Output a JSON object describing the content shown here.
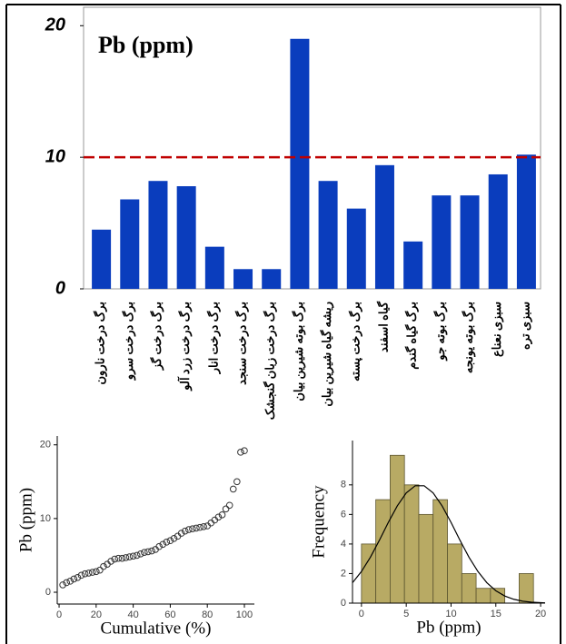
{
  "chart_data": [
    {
      "type": "bar",
      "title": "Pb (ppm)",
      "categories": [
        "برگ درخت نارون",
        "برگ درخت سرو",
        "برگ درخت گز",
        "برگ درخت زرد آلو",
        "برگ درخت انار",
        "برگ درخت سنجد",
        "برگ درخت زبان گنجشک",
        "برگ بوته شیرین بیان",
        "ریشه گیاه شیرین بیان",
        "برگ درخت پسته",
        "گیاه اسفند",
        "برگ گیاه گندم",
        "برگ بوته جو",
        "برگ بوته یونجه",
        "سبزی نعناع",
        "سبزی تره"
      ],
      "values": [
        4.5,
        6.8,
        8.2,
        7.8,
        3.2,
        1.5,
        1.5,
        19.0,
        8.2,
        6.1,
        9.4,
        3.6,
        7.1,
        7.1,
        8.7,
        10.2
      ],
      "color": "#0a3dbd",
      "ylim": [
        0,
        21.4
      ],
      "yticks": [
        0,
        10,
        20
      ],
      "reference_line": {
        "value": 10,
        "color": "#c00000"
      }
    },
    {
      "type": "scatter",
      "xlabel": "Cumulative (%)",
      "ylabel": "Pb (ppm)",
      "x": [
        2,
        4,
        6,
        8,
        10,
        12,
        14,
        16,
        18,
        20,
        22,
        24,
        26,
        28,
        30,
        32,
        34,
        36,
        38,
        40,
        42,
        44,
        46,
        48,
        50,
        52,
        54,
        56,
        58,
        60,
        62,
        64,
        66,
        68,
        70,
        72,
        74,
        76,
        78,
        80,
        82,
        84,
        86,
        88,
        90,
        92,
        94,
        96,
        98,
        100
      ],
      "y": [
        1.0,
        1.3,
        1.5,
        1.8,
        2.0,
        2.3,
        2.5,
        2.6,
        2.7,
        2.8,
        3.0,
        3.5,
        3.8,
        4.2,
        4.5,
        4.6,
        4.6,
        4.7,
        4.8,
        4.9,
        5.0,
        5.2,
        5.4,
        5.5,
        5.6,
        5.8,
        6.2,
        6.5,
        6.8,
        7.0,
        7.3,
        7.6,
        8.0,
        8.3,
        8.5,
        8.6,
        8.7,
        8.8,
        8.9,
        9.0,
        9.4,
        9.8,
        10.2,
        10.5,
        11.3,
        11.8,
        14.0,
        15.0,
        19.0,
        19.2
      ],
      "color": "#333333",
      "xlim": [
        -1,
        105.4
      ],
      "ylim": [
        -1.6,
        21.2
      ],
      "xticks": [
        0,
        20,
        40,
        60,
        80,
        100
      ],
      "yticks": [
        0,
        10,
        20
      ]
    },
    {
      "type": "histogram",
      "xlabel": "Pb (ppm)",
      "ylabel": "Frequency",
      "bins": [
        0,
        1.6,
        3.2,
        4.8,
        6.4,
        8,
        9.6,
        11.2,
        12.8,
        14.4,
        16,
        17.6,
        19.2
      ],
      "counts": [
        4,
        7,
        10,
        8,
        6,
        7,
        4,
        2,
        1,
        1,
        0,
        2
      ],
      "color": "#b8aa64",
      "curve": {
        "x": [
          -1,
          0,
          1,
          2,
          3,
          4,
          5,
          6,
          7,
          8,
          9,
          10,
          11,
          12,
          13,
          14,
          15,
          16,
          17,
          18,
          19,
          20,
          21
        ],
        "y": [
          1.38,
          2.14,
          3.11,
          4.25,
          5.46,
          6.58,
          7.46,
          7.94,
          7.94,
          7.46,
          6.58,
          5.46,
          4.25,
          3.11,
          2.14,
          1.38,
          0.84,
          0.48,
          0.26,
          0.13,
          0.06,
          0.03,
          0.01
        ]
      },
      "xlim": [
        -1,
        20.5
      ],
      "ylim": [
        0,
        11
      ],
      "xticks": [
        0,
        5,
        10,
        15,
        20
      ],
      "yticks": [
        0,
        2,
        4,
        6,
        8
      ]
    }
  ]
}
